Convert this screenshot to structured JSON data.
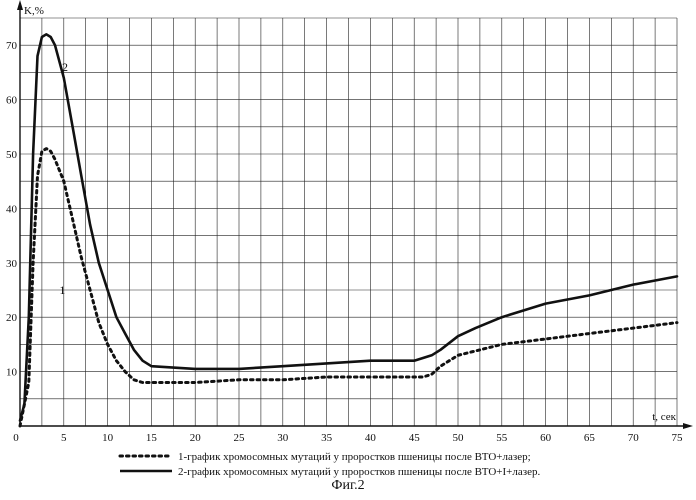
{
  "caption": "Фиг.2",
  "chart_data": {
    "type": "line",
    "title": "",
    "xlabel": "t, сек",
    "ylabel": "K,%",
    "xlim": [
      0,
      75
    ],
    "ylim": [
      0,
      75
    ],
    "x_ticks": [
      0,
      5,
      10,
      15,
      20,
      25,
      30,
      35,
      40,
      45,
      50,
      55,
      60,
      65,
      70,
      75
    ],
    "x_tick_labels": [
      "0",
      "5",
      "10",
      "15",
      "20",
      "25",
      "30",
      "35",
      "40",
      "45",
      "50",
      "55",
      "60",
      "65",
      "70",
      "75"
    ],
    "y_ticks": [
      10,
      20,
      30,
      40,
      50,
      60,
      70
    ],
    "y_tick_labels": [
      "10",
      "20",
      "30",
      "40",
      "50",
      "60",
      "70"
    ],
    "grid": true,
    "series": [
      {
        "name": "1-график хромосомных мутаций у проростков пшеницы после ВТО+лазер;",
        "curve_label": "1",
        "style": "dotted",
        "x": [
          0,
          1,
          1.5,
          2,
          2.5,
          3,
          3.5,
          4,
          5,
          6,
          7,
          8,
          9,
          10,
          11,
          12,
          13,
          14,
          15,
          20,
          25,
          30,
          35,
          40,
          45,
          46,
          47,
          48,
          50,
          55,
          60,
          65,
          70,
          75
        ],
        "y": [
          0,
          8,
          30,
          46,
          50.5,
          51,
          50.5,
          49,
          45,
          38,
          31,
          25,
          19,
          15,
          12,
          10,
          8.5,
          8,
          8,
          8,
          8.5,
          8.5,
          9,
          9,
          9,
          9,
          9.5,
          11,
          13,
          15,
          16,
          17,
          18,
          19
        ]
      },
      {
        "name": "2-график хромосомных мутаций у проростков пшеницы после ВТО+I+лазер.",
        "curve_label": "2",
        "style": "solid",
        "x": [
          0,
          0.5,
          1,
          1.5,
          2,
          2.5,
          3,
          3.5,
          4,
          5,
          6,
          7,
          8,
          9,
          10,
          11,
          12,
          13,
          14,
          15,
          20,
          25,
          30,
          35,
          40,
          45,
          46,
          47,
          48,
          50,
          52,
          55,
          60,
          65,
          70,
          75
        ],
        "y": [
          1,
          4,
          20,
          50,
          68,
          71.5,
          72,
          71.5,
          70,
          64,
          55,
          46,
          37,
          30,
          25,
          20,
          17,
          14,
          12,
          11,
          10.5,
          10.5,
          11,
          11.5,
          12,
          12,
          12.5,
          13,
          14,
          16.5,
          18,
          20,
          22.5,
          24,
          26,
          27.5
        ]
      }
    ],
    "colors": {
      "line": "#111111",
      "grid": "#222222",
      "background": "#ffffff"
    }
  }
}
